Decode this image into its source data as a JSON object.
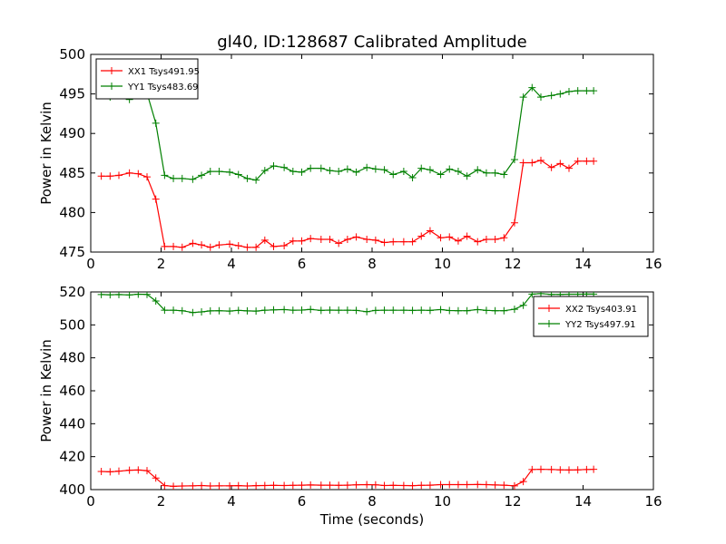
{
  "figure": {
    "title": "gl40, ID:128687 Calibrated Amplitude"
  },
  "chart_data": [
    {
      "type": "line",
      "title": "gl40, ID:128687 Calibrated Amplitude",
      "xlabel": "",
      "ylabel": "Power in Kelvin",
      "xlim": [
        0,
        16
      ],
      "ylim": [
        475,
        500
      ],
      "xticks": [
        0,
        2,
        4,
        6,
        8,
        10,
        12,
        14,
        16
      ],
      "yticks": [
        475,
        480,
        485,
        490,
        495,
        500
      ],
      "grid": false,
      "legend": "top-left",
      "x": [
        0.3,
        0.55,
        0.8,
        1.1,
        1.35,
        1.6,
        1.85,
        2.1,
        2.35,
        2.6,
        2.9,
        3.15,
        3.4,
        3.65,
        3.95,
        4.2,
        4.45,
        4.7,
        4.95,
        5.2,
        5.5,
        5.75,
        6.0,
        6.25,
        6.55,
        6.8,
        7.05,
        7.3,
        7.55,
        7.85,
        8.1,
        8.35,
        8.6,
        8.9,
        9.15,
        9.4,
        9.65,
        9.95,
        10.2,
        10.45,
        10.7,
        11.0,
        11.25,
        11.5,
        11.75,
        12.05,
        12.3,
        12.55,
        12.8,
        13.1,
        13.35,
        13.6,
        13.85,
        14.1,
        14.3
      ],
      "series": [
        {
          "name": "XX1 Tsys491.95",
          "color": "#ff0000",
          "values": [
            484.6,
            484.6,
            484.7,
            485.0,
            484.9,
            484.5,
            481.7,
            475.7,
            475.7,
            475.6,
            476.1,
            475.9,
            475.6,
            475.9,
            476.0,
            475.8,
            475.6,
            475.6,
            476.5,
            475.7,
            475.8,
            476.4,
            476.4,
            476.7,
            476.6,
            476.6,
            476.1,
            476.6,
            476.9,
            476.6,
            476.5,
            476.2,
            476.3,
            476.3,
            476.3,
            477.0,
            477.7,
            476.8,
            476.9,
            476.4,
            477.0,
            476.3,
            476.6,
            476.6,
            476.8,
            478.7,
            486.3,
            486.3,
            486.6,
            485.7,
            486.2,
            485.6,
            486.5,
            486.5,
            486.5
          ]
        },
        {
          "name": "YY1 Tsys483.69",
          "color": "#008000",
          "values": [
            494.8,
            494.6,
            494.8,
            494.3,
            495.2,
            495.1,
            491.3,
            484.7,
            484.3,
            484.3,
            484.2,
            484.7,
            485.2,
            485.2,
            485.1,
            484.8,
            484.3,
            484.1,
            485.3,
            485.9,
            485.7,
            485.2,
            485.1,
            485.6,
            485.6,
            485.3,
            485.2,
            485.5,
            485.1,
            485.7,
            485.5,
            485.4,
            484.8,
            485.2,
            484.4,
            485.6,
            485.4,
            484.8,
            485.5,
            485.2,
            484.6,
            485.4,
            485.0,
            485.0,
            484.8,
            486.7,
            494.6,
            495.8,
            494.6,
            494.8,
            495.0,
            495.3,
            495.4,
            495.4,
            495.4
          ]
        }
      ]
    },
    {
      "type": "line",
      "title": "",
      "xlabel": "Time (seconds)",
      "ylabel": "Power in Kelvin",
      "xlim": [
        0,
        16
      ],
      "ylim": [
        400,
        520
      ],
      "xticks": [
        0,
        2,
        4,
        6,
        8,
        10,
        12,
        14,
        16
      ],
      "yticks": [
        400,
        420,
        440,
        460,
        480,
        500,
        520
      ],
      "grid": false,
      "legend": "top-right",
      "x": [
        0.3,
        0.55,
        0.8,
        1.1,
        1.35,
        1.6,
        1.85,
        2.1,
        2.35,
        2.6,
        2.9,
        3.15,
        3.4,
        3.65,
        3.95,
        4.2,
        4.45,
        4.7,
        4.95,
        5.2,
        5.5,
        5.75,
        6.0,
        6.25,
        6.55,
        6.8,
        7.05,
        7.3,
        7.55,
        7.85,
        8.1,
        8.35,
        8.6,
        8.9,
        9.15,
        9.4,
        9.65,
        9.95,
        10.2,
        10.45,
        10.7,
        11.0,
        11.25,
        11.5,
        11.75,
        12.05,
        12.3,
        12.55,
        12.8,
        13.1,
        13.35,
        13.6,
        13.85,
        14.1,
        14.3
      ],
      "series": [
        {
          "name": "XX2 Tsys403.91",
          "color": "#ff0000",
          "values": [
            411.0,
            410.8,
            411.2,
            411.8,
            411.9,
            411.5,
            407.0,
            402.4,
            402.0,
            402.2,
            402.3,
            402.5,
            402.2,
            402.3,
            402.3,
            402.4,
            402.2,
            402.4,
            402.5,
            402.6,
            402.5,
            402.6,
            402.7,
            402.8,
            402.7,
            402.7,
            402.6,
            402.7,
            402.9,
            403.0,
            402.9,
            402.5,
            402.6,
            402.5,
            402.4,
            402.6,
            402.7,
            403.0,
            403.0,
            403.0,
            403.0,
            403.1,
            403.0,
            402.8,
            402.7,
            402.3,
            404.9,
            412.2,
            412.3,
            412.2,
            412.0,
            411.9,
            412.0,
            412.2,
            412.3
          ]
        },
        {
          "name": "YY2 Tsys497.91",
          "color": "#008000",
          "values": [
            518.4,
            518.3,
            518.4,
            518.2,
            518.6,
            518.5,
            514.5,
            508.9,
            508.9,
            508.6,
            507.5,
            507.9,
            508.5,
            508.6,
            508.4,
            508.8,
            508.5,
            508.4,
            508.9,
            509.1,
            509.3,
            508.9,
            509.0,
            509.4,
            508.8,
            509.0,
            508.9,
            508.9,
            508.8,
            508.0,
            508.8,
            508.9,
            508.9,
            508.9,
            508.8,
            508.9,
            508.8,
            509.3,
            508.7,
            508.6,
            508.6,
            509.3,
            508.8,
            508.6,
            508.6,
            509.5,
            511.9,
            518.7,
            519.0,
            518.5,
            518.5,
            518.6,
            518.6,
            518.7,
            518.7
          ]
        }
      ]
    }
  ]
}
